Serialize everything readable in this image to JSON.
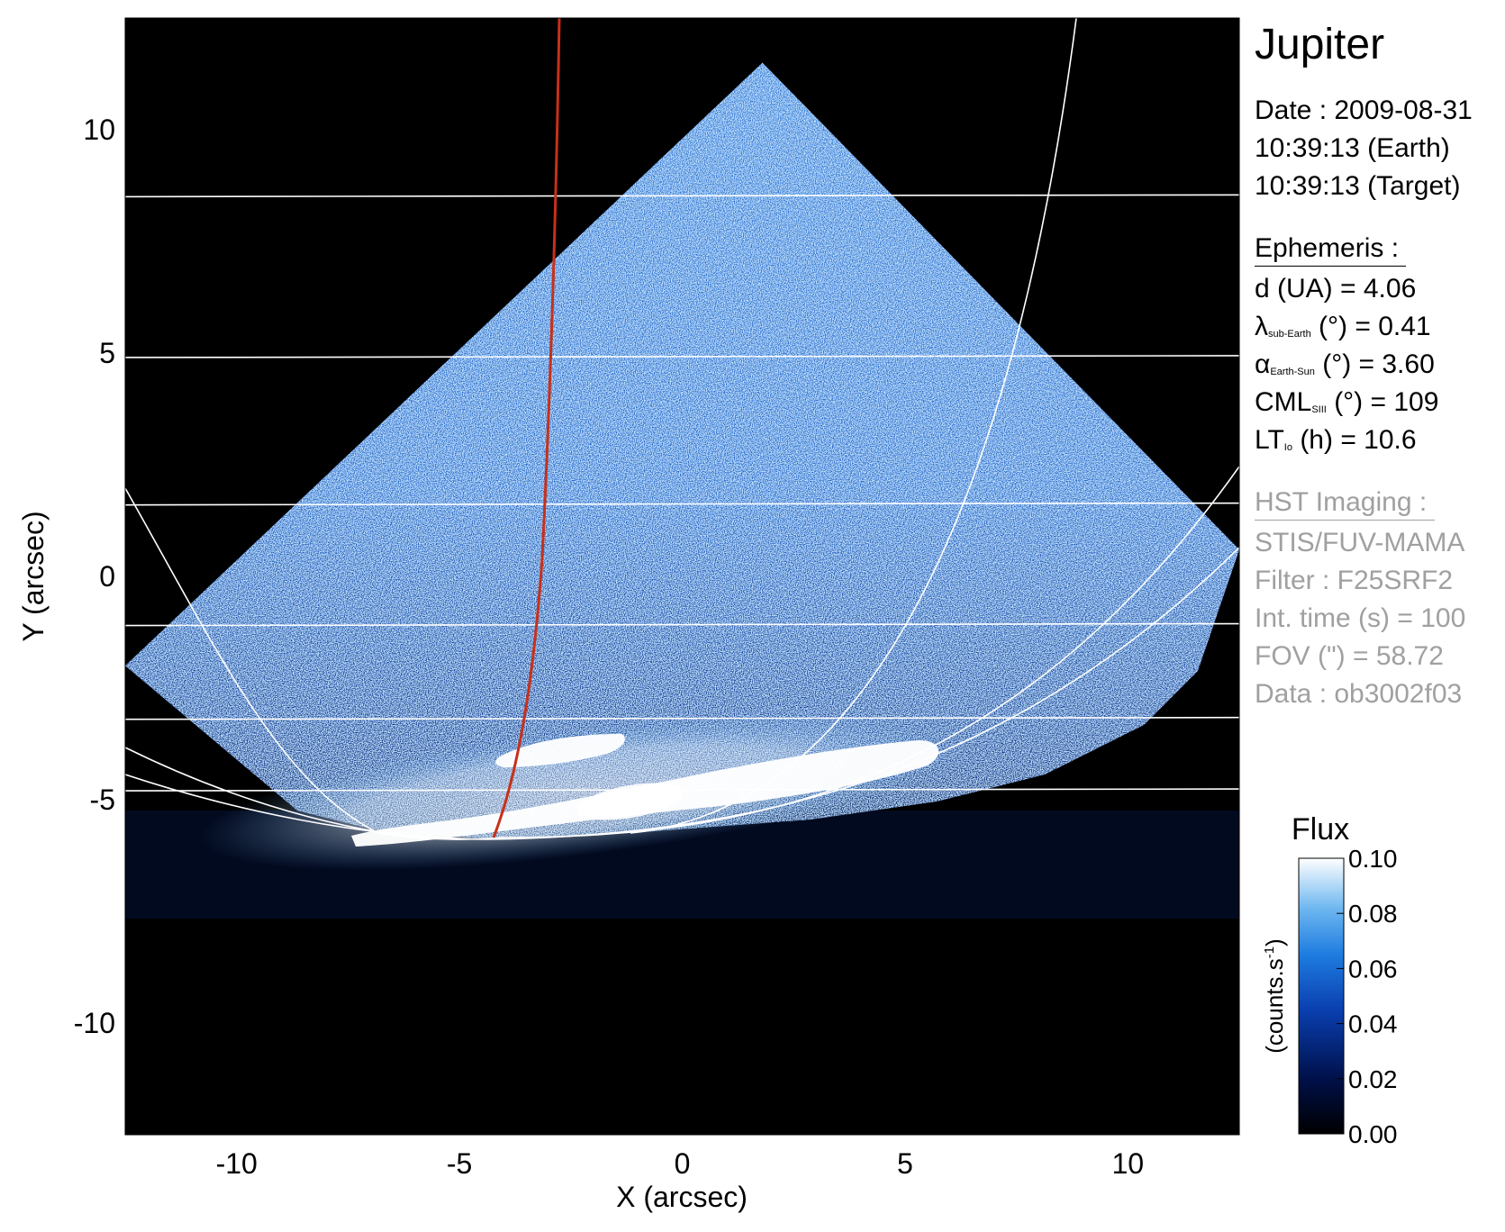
{
  "chart_data": {
    "type": "heatmap",
    "title": "Jupiter",
    "xlabel": "X (arcsec)",
    "ylabel": "Y (arcsec)",
    "xlim": [
      -12.5,
      12.5
    ],
    "ylim": [
      -12.5,
      12.5
    ],
    "xticks": [
      "-10",
      "-5",
      "0",
      "5",
      "10"
    ],
    "yticks": [
      "10",
      "5",
      "0",
      "-5",
      "-10"
    ],
    "xtick_values": [
      -10,
      -5,
      0,
      5,
      10
    ],
    "ytick_values": [
      10,
      5,
      0,
      -5,
      -10
    ],
    "colorbar": {
      "label": "Flux",
      "unit_label": "(counts.s",
      "unit_sup": "-1",
      "unit_close": ")",
      "ticks": [
        "0.10",
        "0.08",
        "0.06",
        "0.04",
        "0.02",
        "0.00"
      ],
      "tick_values": [
        0.1,
        0.08,
        0.06,
        0.04,
        0.02,
        0.0
      ],
      "range": [
        0.0,
        0.1
      ],
      "colors": [
        "#000000",
        "#00104a",
        "#0a3fb0",
        "#1e7ce0",
        "#6fb8f0",
        "#ffffff"
      ]
    },
    "footprint_apex": [
      1.8,
      11.5
    ],
    "footprint_right": [
      12.5,
      0.6
    ],
    "footprint_left": [
      -12.5,
      -2.0
    ],
    "latitude_line_y": [
      8.5,
      4.9,
      1.6,
      -1.1,
      -3.2,
      -4.8
    ],
    "meridian_color": "#ffffff",
    "io_footprint_color": "#c8301a",
    "image_colors": {
      "sky": "#000000",
      "disk": "#1f5fc4",
      "aurora": "#ffffff"
    }
  },
  "info": {
    "date": "Date : 2009-08-31",
    "earth_time": "10:39:13 (Earth)",
    "target_time": "10:39:13 (Target)",
    "ephemeris_title": "Ephemeris :",
    "distance": "d (UA)    = 4.06",
    "lat_symbol": "λ",
    "lat_sub": "sub-Earth",
    "lat_value": " (°) = 0.41",
    "phase_symbol": "α",
    "phase_sub": "Earth-Sun",
    "phase_value": " (°) = 3.60",
    "cml_label": "CML",
    "cml_sub": "SIII",
    "cml_value": " (°) = 109",
    "lt_label": "LT",
    "lt_sub": "Io",
    "lt_value": " (h) = 10.6",
    "hst_title": "HST Imaging :",
    "instrument": "STIS/FUV-MAMA",
    "filter": "Filter : F25SRF2",
    "int_time": "Int. time (s) = 100",
    "fov": "FOV (\") = 58.72",
    "data": "Data : ob3002f03"
  }
}
